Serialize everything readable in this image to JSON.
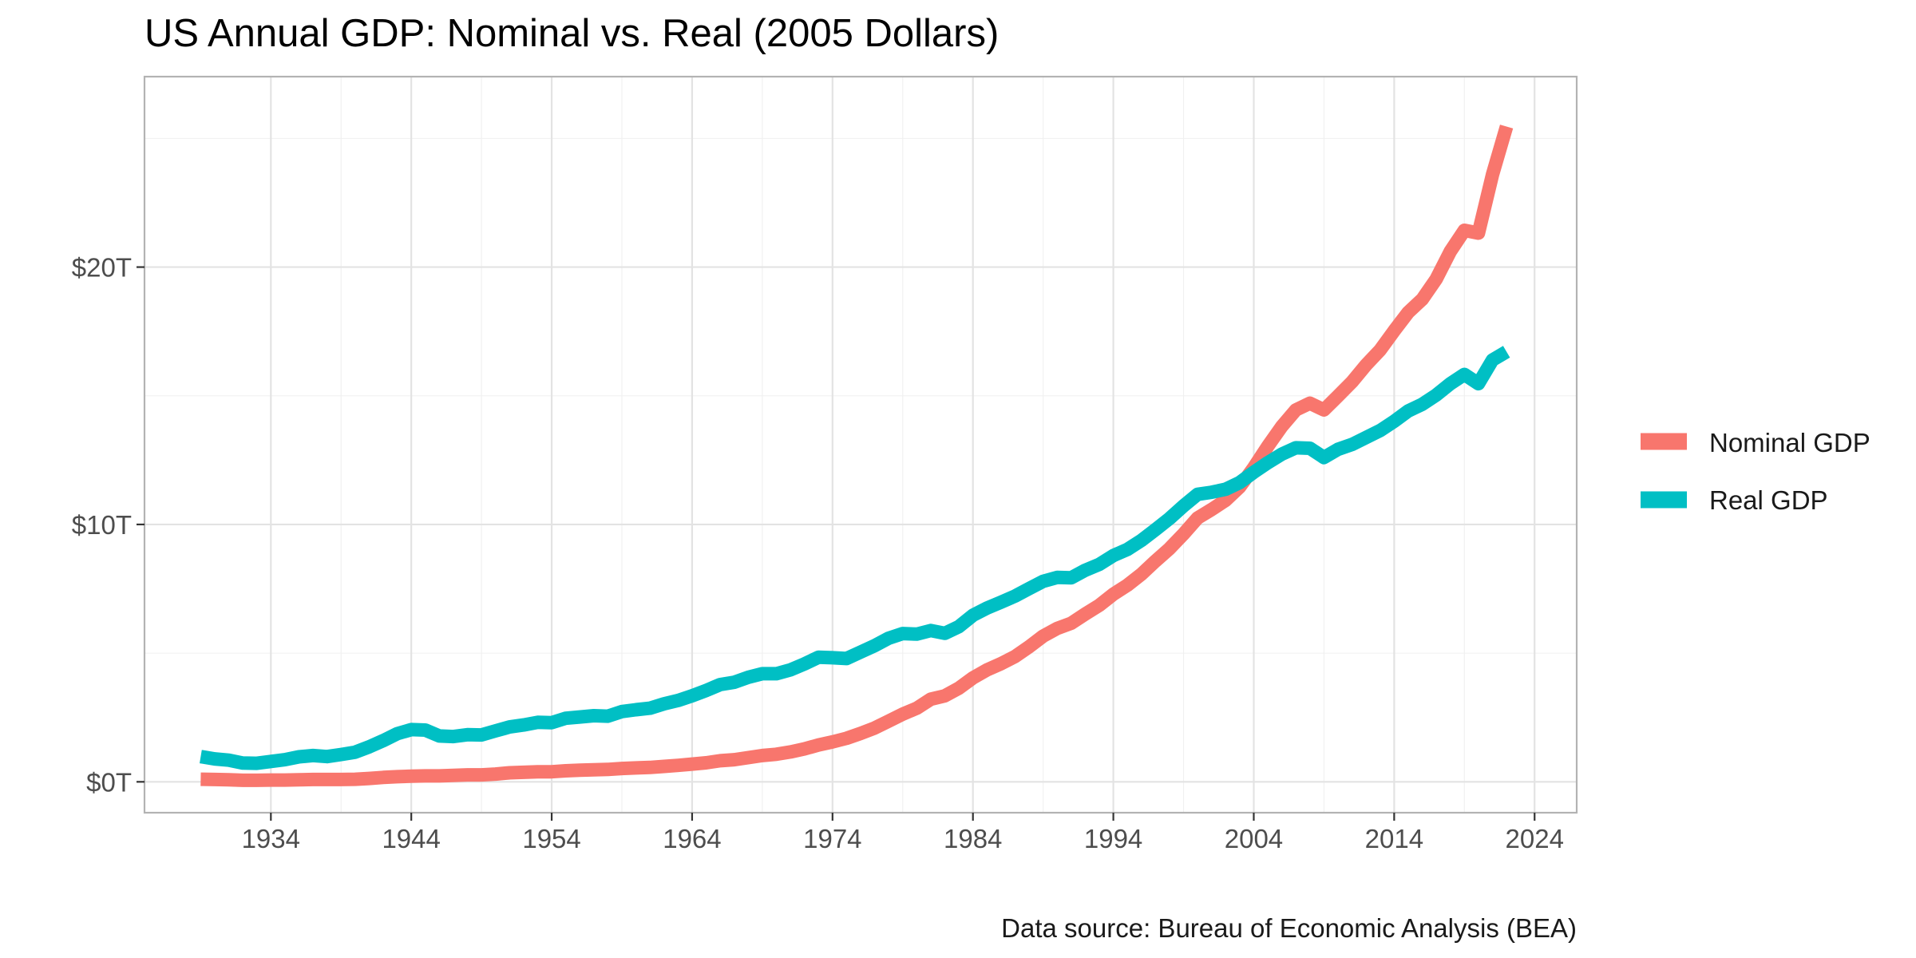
{
  "chart_data": {
    "type": "line",
    "title": "US Annual GDP: Nominal vs. Real (2005 Dollars)",
    "caption": "Data source: Bureau of Economic Analysis (BEA)",
    "xlabel": "",
    "ylabel": "",
    "xlim": [
      1925,
      2027
    ],
    "ylim": [
      -1.2,
      27.4
    ],
    "x_ticks": [
      1934,
      1944,
      1954,
      1964,
      1974,
      1984,
      1994,
      2004,
      2014,
      2024
    ],
    "x_tick_labels": [
      "1934",
      "1944",
      "1954",
      "1964",
      "1974",
      "1984",
      "1994",
      "2004",
      "2014",
      "2024"
    ],
    "y_ticks": [
      0,
      10,
      20
    ],
    "y_tick_labels": [
      "$0T",
      "$10T",
      "$20T"
    ],
    "grid": true,
    "legend": "right",
    "colors": {
      "Nominal GDP": "#F8766D",
      "Real GDP": "#00BFC4"
    },
    "series": [
      {
        "name": "Nominal GDP",
        "color": "#F8766D",
        "points": [
          [
            1929,
            0.1
          ],
          [
            1930,
            0.09
          ],
          [
            1931,
            0.08
          ],
          [
            1932,
            0.06
          ],
          [
            1933,
            0.06
          ],
          [
            1934,
            0.07
          ],
          [
            1935,
            0.07
          ],
          [
            1936,
            0.08
          ],
          [
            1937,
            0.09
          ],
          [
            1938,
            0.09
          ],
          [
            1939,
            0.09
          ],
          [
            1940,
            0.1
          ],
          [
            1941,
            0.13
          ],
          [
            1942,
            0.17
          ],
          [
            1943,
            0.2
          ],
          [
            1944,
            0.22
          ],
          [
            1945,
            0.23
          ],
          [
            1946,
            0.23
          ],
          [
            1947,
            0.25
          ],
          [
            1948,
            0.27
          ],
          [
            1949,
            0.27
          ],
          [
            1950,
            0.3
          ],
          [
            1951,
            0.35
          ],
          [
            1952,
            0.37
          ],
          [
            1953,
            0.39
          ],
          [
            1954,
            0.39
          ],
          [
            1955,
            0.43
          ],
          [
            1956,
            0.45
          ],
          [
            1957,
            0.47
          ],
          [
            1958,
            0.48
          ],
          [
            1959,
            0.52
          ],
          [
            1960,
            0.54
          ],
          [
            1961,
            0.56
          ],
          [
            1962,
            0.6
          ],
          [
            1963,
            0.64
          ],
          [
            1964,
            0.69
          ],
          [
            1965,
            0.74
          ],
          [
            1966,
            0.82
          ],
          [
            1967,
            0.86
          ],
          [
            1968,
            0.94
          ],
          [
            1969,
            1.02
          ],
          [
            1970,
            1.07
          ],
          [
            1971,
            1.16
          ],
          [
            1972,
            1.28
          ],
          [
            1973,
            1.43
          ],
          [
            1974,
            1.55
          ],
          [
            1975,
            1.69
          ],
          [
            1976,
            1.88
          ],
          [
            1977,
            2.09
          ],
          [
            1978,
            2.36
          ],
          [
            1979,
            2.63
          ],
          [
            1980,
            2.86
          ],
          [
            1981,
            3.21
          ],
          [
            1982,
            3.34
          ],
          [
            1983,
            3.64
          ],
          [
            1984,
            4.04
          ],
          [
            1985,
            4.35
          ],
          [
            1986,
            4.59
          ],
          [
            1987,
            4.87
          ],
          [
            1988,
            5.25
          ],
          [
            1989,
            5.66
          ],
          [
            1990,
            5.96
          ],
          [
            1991,
            6.16
          ],
          [
            1992,
            6.52
          ],
          [
            1993,
            6.86
          ],
          [
            1994,
            7.29
          ],
          [
            1995,
            7.64
          ],
          [
            1996,
            8.07
          ],
          [
            1997,
            8.58
          ],
          [
            1998,
            9.06
          ],
          [
            1999,
            9.63
          ],
          [
            2000,
            10.25
          ],
          [
            2001,
            10.58
          ],
          [
            2002,
            10.94
          ],
          [
            2003,
            11.46
          ],
          [
            2004,
            12.21
          ],
          [
            2005,
            13.04
          ],
          [
            2006,
            13.81
          ],
          [
            2007,
            14.45
          ],
          [
            2008,
            14.71
          ],
          [
            2009,
            14.45
          ],
          [
            2010,
            14.99
          ],
          [
            2011,
            15.54
          ],
          [
            2012,
            16.2
          ],
          [
            2013,
            16.78
          ],
          [
            2014,
            17.53
          ],
          [
            2015,
            18.24
          ],
          [
            2016,
            18.75
          ],
          [
            2017,
            19.54
          ],
          [
            2018,
            20.61
          ],
          [
            2019,
            21.43
          ],
          [
            2020,
            21.32
          ],
          [
            2021,
            23.59
          ],
          [
            2022,
            25.46
          ]
        ]
      },
      {
        "name": "Real GDP",
        "color": "#00BFC4",
        "points": [
          [
            1929,
            0.98
          ],
          [
            1930,
            0.89
          ],
          [
            1931,
            0.84
          ],
          [
            1932,
            0.73
          ],
          [
            1933,
            0.72
          ],
          [
            1934,
            0.79
          ],
          [
            1935,
            0.86
          ],
          [
            1936,
            0.97
          ],
          [
            1937,
            1.02
          ],
          [
            1938,
            0.98
          ],
          [
            1939,
            1.06
          ],
          [
            1940,
            1.15
          ],
          [
            1941,
            1.36
          ],
          [
            1942,
            1.6
          ],
          [
            1943,
            1.87
          ],
          [
            1944,
            2.03
          ],
          [
            1945,
            2.01
          ],
          [
            1946,
            1.78
          ],
          [
            1947,
            1.76
          ],
          [
            1948,
            1.83
          ],
          [
            1949,
            1.82
          ],
          [
            1950,
            1.98
          ],
          [
            1951,
            2.13
          ],
          [
            1952,
            2.21
          ],
          [
            1953,
            2.31
          ],
          [
            1954,
            2.3
          ],
          [
            1955,
            2.47
          ],
          [
            1956,
            2.52
          ],
          [
            1957,
            2.57
          ],
          [
            1958,
            2.55
          ],
          [
            1959,
            2.73
          ],
          [
            1960,
            2.8
          ],
          [
            1961,
            2.86
          ],
          [
            1962,
            3.03
          ],
          [
            1963,
            3.16
          ],
          [
            1964,
            3.34
          ],
          [
            1965,
            3.55
          ],
          [
            1966,
            3.78
          ],
          [
            1967,
            3.87
          ],
          [
            1968,
            4.06
          ],
          [
            1969,
            4.2
          ],
          [
            1970,
            4.2
          ],
          [
            1971,
            4.35
          ],
          [
            1972,
            4.58
          ],
          [
            1973,
            4.84
          ],
          [
            1974,
            4.82
          ],
          [
            1975,
            4.79
          ],
          [
            1976,
            5.04
          ],
          [
            1977,
            5.29
          ],
          [
            1978,
            5.58
          ],
          [
            1979,
            5.76
          ],
          [
            1980,
            5.74
          ],
          [
            1981,
            5.88
          ],
          [
            1982,
            5.77
          ],
          [
            1983,
            6.03
          ],
          [
            1984,
            6.47
          ],
          [
            1985,
            6.75
          ],
          [
            1986,
            6.98
          ],
          [
            1987,
            7.22
          ],
          [
            1988,
            7.51
          ],
          [
            1989,
            7.79
          ],
          [
            1990,
            7.94
          ],
          [
            1991,
            7.93
          ],
          [
            1992,
            8.22
          ],
          [
            1993,
            8.45
          ],
          [
            1994,
            8.79
          ],
          [
            1995,
            9.03
          ],
          [
            1996,
            9.38
          ],
          [
            1997,
            9.8
          ],
          [
            1998,
            10.23
          ],
          [
            1999,
            10.72
          ],
          [
            2000,
            11.17
          ],
          [
            2001,
            11.25
          ],
          [
            2002,
            11.37
          ],
          [
            2003,
            11.63
          ],
          [
            2004,
            12.03
          ],
          [
            2005,
            12.4
          ],
          [
            2006,
            12.73
          ],
          [
            2007,
            12.98
          ],
          [
            2008,
            12.96
          ],
          [
            2009,
            12.6
          ],
          [
            2010,
            12.92
          ],
          [
            2011,
            13.11
          ],
          [
            2012,
            13.38
          ],
          [
            2013,
            13.65
          ],
          [
            2014,
            14.01
          ],
          [
            2015,
            14.41
          ],
          [
            2016,
            14.67
          ],
          [
            2017,
            15.03
          ],
          [
            2018,
            15.47
          ],
          [
            2019,
            15.83
          ],
          [
            2020,
            15.47
          ],
          [
            2021,
            16.39
          ],
          [
            2022,
            16.71
          ]
        ]
      }
    ]
  }
}
